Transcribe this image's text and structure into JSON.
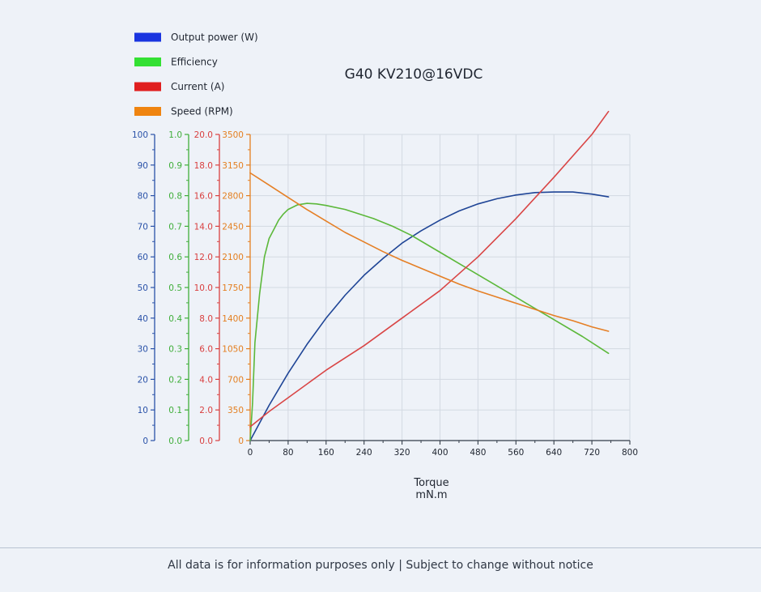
{
  "chart_data": {
    "type": "line",
    "title": "G40 KV210@16VDC",
    "xlabel": "Torque",
    "xunit": "mN.m",
    "xlim": [
      0,
      800
    ],
    "x_ticks": [
      "0",
      "80",
      "160",
      "240",
      "320",
      "400",
      "480",
      "560",
      "640",
      "720",
      "800"
    ],
    "grid": true,
    "legend_position": "top-left",
    "axes": [
      {
        "id": "power",
        "color": "#2a52a8",
        "min": 0,
        "max": 100,
        "ticks": [
          "0",
          "10",
          "20",
          "30",
          "40",
          "50",
          "60",
          "70",
          "80",
          "90",
          "100"
        ]
      },
      {
        "id": "eff",
        "color": "#3fae3a",
        "min": 0,
        "max": 1,
        "ticks": [
          "0.0",
          "0.1",
          "0.2",
          "0.3",
          "0.4",
          "0.5",
          "0.6",
          "0.7",
          "0.8",
          "0.9",
          "1.0"
        ]
      },
      {
        "id": "current",
        "color": "#d94040",
        "min": 0,
        "max": 20,
        "ticks": [
          "0.0",
          "2.0",
          "4.0",
          "6.0",
          "8.0",
          "10.0",
          "12.0",
          "14.0",
          "16.0",
          "18.0",
          "20.0"
        ]
      },
      {
        "id": "speed",
        "color": "#e47f20",
        "min": 0,
        "max": 3500,
        "ticks": [
          "0",
          "350",
          "700",
          "1050",
          "1400",
          "1750",
          "2100",
          "2450",
          "2800",
          "3150",
          "3500"
        ]
      }
    ],
    "series": [
      {
        "name": "Output power (W)",
        "axis": "power",
        "color": "#1f4596",
        "legend_color": "#1a35e0",
        "x": [
          0,
          40,
          80,
          120,
          160,
          200,
          240,
          280,
          320,
          360,
          400,
          440,
          480,
          520,
          560,
          600,
          640,
          680,
          720,
          755
        ],
        "y": [
          0,
          11.5,
          22,
          31.5,
          40,
          47.5,
          54,
          59.5,
          64.5,
          68.5,
          72,
          75,
          77.3,
          79,
          80.2,
          81,
          81.2,
          81.2,
          80.5,
          79.6
        ]
      },
      {
        "name": "Efficiency",
        "axis": "eff",
        "color": "#5cb83a",
        "legend_color": "#33e033",
        "x": [
          0,
          5,
          10,
          20,
          30,
          40,
          50,
          60,
          70,
          80,
          100,
          120,
          140,
          160,
          200,
          260,
          300,
          340,
          400,
          460,
          520,
          580,
          640,
          700,
          755
        ],
        "y": [
          0,
          0.12,
          0.32,
          0.48,
          0.6,
          0.66,
          0.69,
          0.72,
          0.74,
          0.755,
          0.77,
          0.775,
          0.773,
          0.768,
          0.755,
          0.725,
          0.7,
          0.67,
          0.615,
          0.56,
          0.505,
          0.45,
          0.395,
          0.34,
          0.285
        ]
      },
      {
        "name": "Current (A)",
        "axis": "current",
        "color": "#d94545",
        "legend_color": "#e01f1f",
        "x": [
          0,
          40,
          80,
          160,
          240,
          320,
          400,
          480,
          560,
          640,
          720,
          755
        ],
        "y": [
          0.9,
          1.9,
          2.8,
          4.6,
          6.2,
          8.0,
          9.8,
          12.0,
          14.5,
          17.2,
          20.0,
          21.5
        ]
      },
      {
        "name": "Speed (RPM)",
        "axis": "speed",
        "color": "#e57f25",
        "legend_color": "#ef8410",
        "x": [
          0,
          40,
          80,
          120,
          160,
          200,
          240,
          280,
          320,
          360,
          400,
          440,
          480,
          520,
          560,
          600,
          640,
          680,
          720,
          755
        ],
        "y": [
          3060,
          2920,
          2780,
          2640,
          2510,
          2380,
          2270,
          2160,
          2060,
          1970,
          1880,
          1790,
          1710,
          1640,
          1570,
          1500,
          1430,
          1370,
          1300,
          1250
        ]
      }
    ]
  },
  "footer": {
    "disclaimer": "All data is for information purposes only | Subject to change without notice"
  }
}
